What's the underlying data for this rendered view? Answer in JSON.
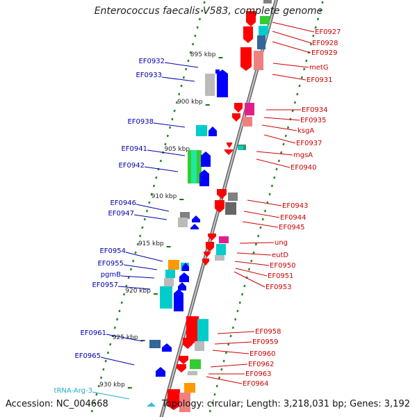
{
  "title": "Enterococcus faecalis V583, complete genome",
  "footer": {
    "accession": "Accession: NC_004668",
    "summary": "Topology: circular; Length: 3,218,031 bp; Genes: 3,192"
  },
  "colors": {
    "left_label": "#0000aa",
    "right_label": "#cc0000",
    "trna_label": "#22aacc",
    "backbone": "#888888",
    "track_dash": "#228B22",
    "red": "#ff0000",
    "pink": "#f08080",
    "blue": "#0000ff",
    "cyan": "#00cccc",
    "green": "#33cc33",
    "teal": "#339966",
    "magenta": "#e0208a",
    "gray": "#808080",
    "light_gray": "#bbbbbb",
    "orange": "#ff9900",
    "steel_blue": "#336699"
  },
  "scale_ticks": [
    "895 kbp",
    "900 kbp",
    "905 kbp",
    "910 kbp",
    "915 kbp",
    "920 kbp",
    "925 kbp",
    "930 kbp"
  ],
  "left_genes": [
    {
      "label": "EF0932",
      "color": "#0000aa"
    },
    {
      "label": "EF0933",
      "color": "#0000aa"
    },
    {
      "label": "EF0938",
      "color": "#0000aa"
    },
    {
      "label": "EF0941",
      "color": "#0000aa"
    },
    {
      "label": "EF0942",
      "color": "#0000aa"
    },
    {
      "label": "EF0946",
      "color": "#0000aa"
    },
    {
      "label": "EF0947",
      "color": "#0000aa"
    },
    {
      "label": "EF0954",
      "color": "#0000aa"
    },
    {
      "label": "EF0955",
      "color": "#0000aa"
    },
    {
      "label": "pgmB",
      "color": "#0000aa"
    },
    {
      "label": "EF0957",
      "color": "#0000aa"
    },
    {
      "label": "EF0961",
      "color": "#0000aa"
    },
    {
      "label": "EF0965",
      "color": "#0000aa"
    },
    {
      "label": "tRNA-Arg-3",
      "color": "#22aacc"
    }
  ],
  "right_genes": [
    {
      "label": "EF0927"
    },
    {
      "label": "EF0928"
    },
    {
      "label": "EF0929"
    },
    {
      "label": "metG"
    },
    {
      "label": "EF0931"
    },
    {
      "label": "EF0934"
    },
    {
      "label": "EF0935"
    },
    {
      "label": "ksgA"
    },
    {
      "label": "EF0937"
    },
    {
      "label": "mgsA"
    },
    {
      "label": "EF0940"
    },
    {
      "label": "EF0943"
    },
    {
      "label": "EF0944"
    },
    {
      "label": "EF0945"
    },
    {
      "label": "ung"
    },
    {
      "label": "eutD"
    },
    {
      "label": "EF0950"
    },
    {
      "label": "EF0951"
    },
    {
      "label": "EF0953"
    },
    {
      "label": "EF0958"
    },
    {
      "label": "EF0959"
    },
    {
      "label": "EF0960"
    },
    {
      "label": "EF0962"
    },
    {
      "label": "EF0963"
    },
    {
      "label": "EF0964"
    }
  ]
}
